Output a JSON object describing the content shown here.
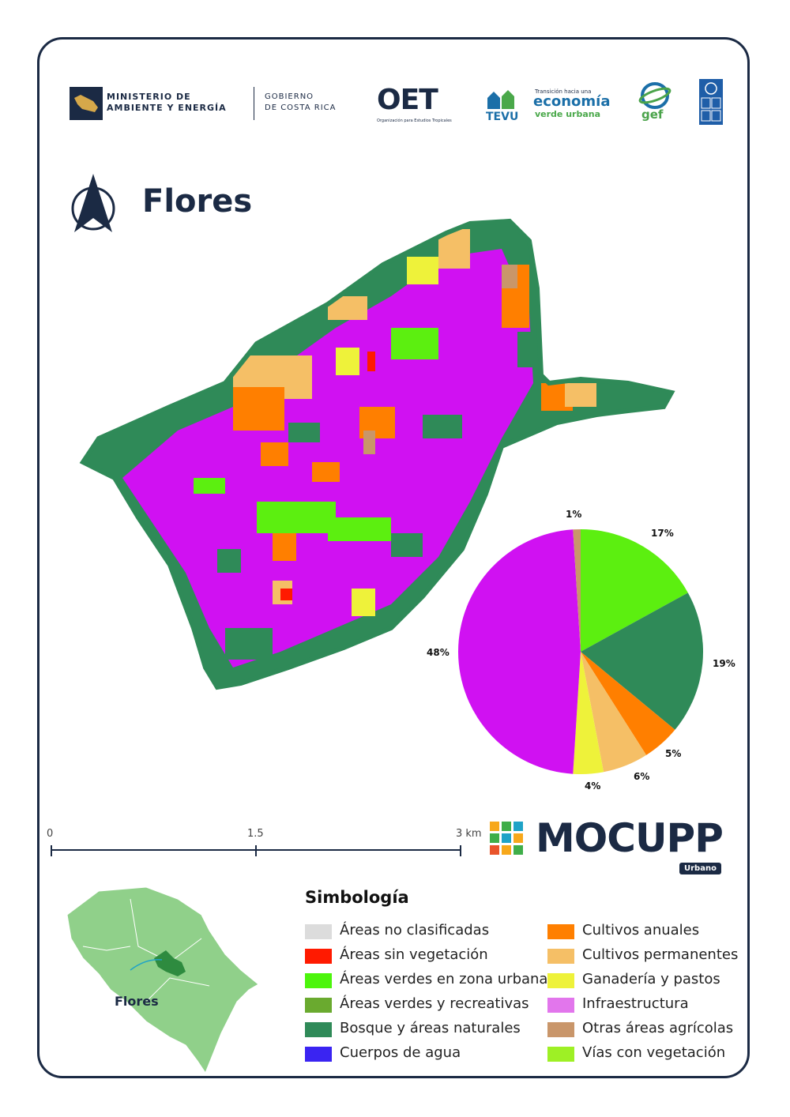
{
  "header": {
    "logos": {
      "minae": [
        "MINISTERIO DE",
        "AMBIENTE Y ENERGÍA"
      ],
      "gobierno": [
        "GOBIERNO",
        "DE COSTA RICA"
      ],
      "oet": "OET",
      "oet_sub": "Organización para Estudios Tropicales",
      "tevu_sub": "Transición hacia una",
      "tevu_main": "economía",
      "tevu_sub2": "verde urbana",
      "tevu_name": "TEVU",
      "gef": "gef"
    }
  },
  "map": {
    "title": "Flores",
    "scale": {
      "labels": [
        "0",
        "1.5",
        "3 km"
      ]
    },
    "inset_label": "Flores"
  },
  "chart_data": {
    "type": "pie",
    "slices": [
      {
        "label": "Vías con vegetación / Áreas verdes en zona urbana",
        "value": 17,
        "text": "17%",
        "color": "#5cef10"
      },
      {
        "label": "Bosque y áreas naturales",
        "value": 19,
        "text": "19%",
        "color": "#2f8a58"
      },
      {
        "label": "Cultivos anuales",
        "value": 5,
        "text": "5%",
        "color": "#ff7f00"
      },
      {
        "label": "Cultivos permanentes",
        "value": 6,
        "text": "6%",
        "color": "#f5bf66"
      },
      {
        "label": "Ganadería y pastos",
        "value": 4,
        "text": "4%",
        "color": "#eef23a"
      },
      {
        "label": "Infraestructura",
        "value": 48,
        "text": "48%",
        "color": "#d011f2"
      },
      {
        "label": "Otras áreas agrícolas",
        "value": 1,
        "text": "1%",
        "color": "#c9966a"
      }
    ]
  },
  "brand": {
    "name": "MOCUPP",
    "tag": "Urbano"
  },
  "legend": {
    "title": "Simbología",
    "left": [
      {
        "label": "Áreas no clasificadas",
        "color": "#dcdcdc"
      },
      {
        "label": "Áreas sin vegetación",
        "color": "#ff1a00"
      },
      {
        "label": "Áreas verdes en zona urbana",
        "color": "#4cf50c"
      },
      {
        "label": "Áreas verdes y recreativas",
        "color": "#6aaa2f"
      },
      {
        "label": "Bosque y áreas naturales",
        "color": "#2f8a58"
      },
      {
        "label": "Cuerpos de agua",
        "color": "#3a24f2"
      }
    ],
    "right": [
      {
        "label": "Cultivos anuales",
        "color": "#ff7f00"
      },
      {
        "label": "Cultivos permanentes",
        "color": "#f5bf66"
      },
      {
        "label": "Ganadería y pastos",
        "color": "#eef23a"
      },
      {
        "label": "Infraestructura",
        "color": "#e276ec"
      },
      {
        "label": "Otras áreas agrícolas",
        "color": "#c9966a"
      },
      {
        "label": "Vías con vegetación",
        "color": "#9ef025"
      }
    ]
  }
}
